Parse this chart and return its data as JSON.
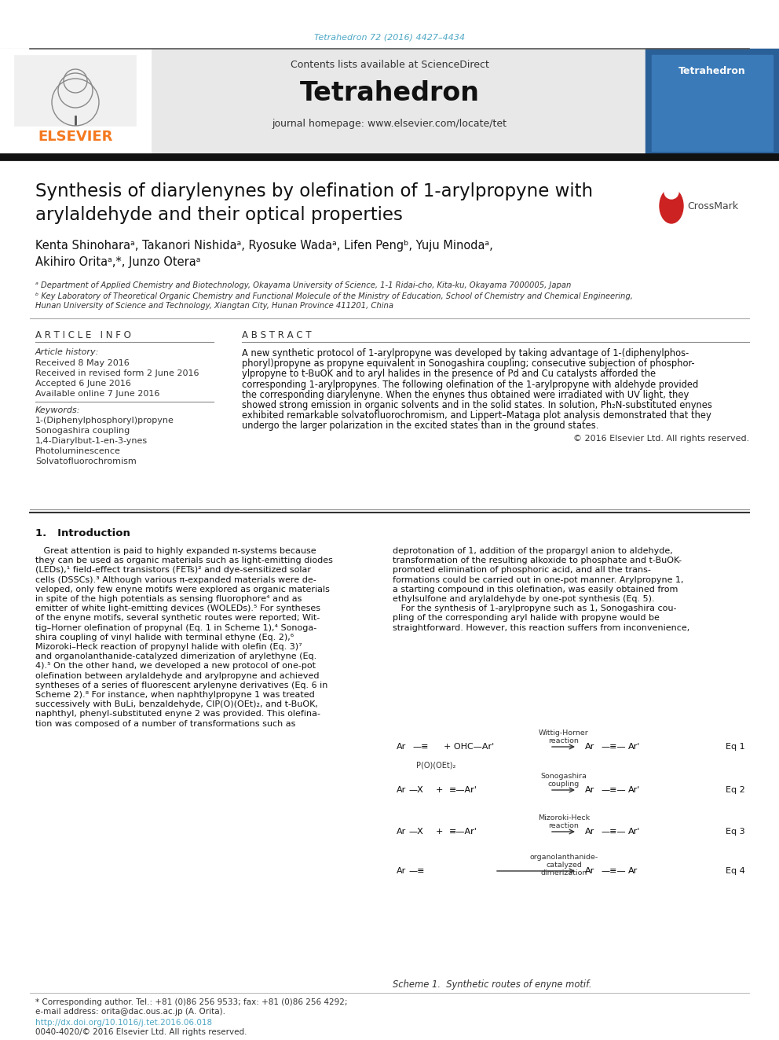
{
  "page_bg": "#ffffff",
  "header_citation": "Tetrahedron 72 (2016) 4427–4434",
  "header_citation_color": "#4fa8c5",
  "journal_name": "Tetrahedron",
  "journal_header_bg": "#e8e8e8",
  "contents_text": "Contents lists available at ",
  "sciencedirect_text": "ScienceDirect",
  "sciencedirect_color": "#4fa8c5",
  "homepage_text": "journal homepage: ",
  "homepage_url": "www.elsevier.com/locate/tet",
  "homepage_url_color": "#4fa8c5",
  "elsevier_color": "#f47920",
  "article_title": "Synthesis of diarylenynes by olefination of 1-arylpropyne with\narylaldehyde and their optical properties",
  "article_info_title": "A R T I C L E   I N F O",
  "abstract_title": "A B S T R A C T",
  "article_history_label": "Article history:",
  "received": "Received 8 May 2016",
  "revised": "Received in revised form 2 June 2016",
  "accepted": "Accepted 6 June 2016",
  "available": "Available online 7 June 2016",
  "keywords_label": "Keywords:",
  "keywords": [
    "1-(Diphenylphosphoryl)propyne",
    "Sonogashira coupling",
    "1,4-Diarylbut-1-en-3-ynes",
    "Photoluminescence",
    "Solvatofluorochromism"
  ],
  "abstract_text_lines": [
    "A new synthetic protocol of 1-arylpropyne was developed by taking advantage of 1-(diphenylphos-",
    "phoryl)propyne as propyne equivalent in Sonogashira coupling; consecutive subjection of phosphor-",
    "ylpropyne to t-BuOK and to aryl halides in the presence of Pd and Cu catalysts afforded the",
    "corresponding 1-arylpropynes. The following olefination of the 1-arylpropyne with aldehyde provided",
    "the corresponding diarylenyne. When the enynes thus obtained were irradiated with UV light, they",
    "showed strong emission in organic solvents and in the solid states. In solution, Ph₂N-substituted enynes",
    "exhibited remarkable solvatofluorochromism, and Lippert–Mataga plot analysis demonstrated that they",
    "undergo the larger polarization in the excited states than in the ground states."
  ],
  "copyright": "© 2016 Elsevier Ltd. All rights reserved.",
  "intro_heading": "1.   Introduction",
  "intro_left_lines": [
    "   Great attention is paid to highly expanded π-systems because",
    "they can be used as organic materials such as light-emitting diodes",
    "(LEDs),¹ field-effect transistors (FETs)² and dye-sensitized solar",
    "cells (DSSCs).³ Although various π-expanded materials were de-",
    "veloped, only few enyne motifs were explored as organic materials",
    "in spite of the high potentials as sensing fluorophore⁴ and as",
    "emitter of white light-emitting devices (WOLEDs).⁵ For syntheses",
    "of the enyne motifs, several synthetic routes were reported; Wit-",
    "tig–Horner olefination of propynal (Eq. 1 in Scheme 1),⁴ Sonoga-",
    "shira coupling of vinyl halide with terminal ethyne (Eq. 2),⁶",
    "Mizoroki–Heck reaction of propynyl halide with olefin (Eq. 3)⁷",
    "and organolanthanide-catalyzed dimerization of arylethyne (Eq.",
    "4).⁵ On the other hand, we developed a new protocol of one-pot",
    "olefination between arylaldehyde and arylpropyne and achieved",
    "syntheses of a series of fluorescent arylenyne derivatives (Eq. 6 in",
    "Scheme 2).⁸ For instance, when naphthylpropyne 1 was treated",
    "successively with BuLi, benzaldehyde, CIP(O)(OEt)₂, and t-BuOK,",
    "naphthyl, phenyl-substituted enyne 2 was provided. This olefina-",
    "tion was composed of a number of transformations such as"
  ],
  "intro_right_lines": [
    "deprotonation of 1, addition of the propargyl anion to aldehyde,",
    "transformation of the resulting alkoxide to phosphate and t-BuOK-",
    "promoted elimination of phosphoric acid, and all the trans-",
    "formations could be carried out in one-pot manner. Arylpropyne 1,",
    "a starting compound in this olefination, was easily obtained from",
    "ethylsulfone and arylaldehyde by one-pot synthesis (Eq. 5).",
    "   For the synthesis of 1-arylpropyne such as 1, Sonogashira cou-",
    "pling of the corresponding aryl halide with propyne would be",
    "straightforward. However, this reaction suffers from inconvenience,"
  ],
  "affil_a": "ᵃ Department of Applied Chemistry and Biotechnology, Okayama University of Science, 1-1 Ridai-cho, Kita-ku, Okayama 7000005, Japan",
  "affil_b1": "ᵇ Key Laboratory of Theoretical Organic Chemistry and Functional Molecule of the Ministry of Education, School of Chemistry and Chemical Engineering,",
  "affil_b2": "Hunan University of Science and Technology, Xiangtan City, Hunan Province 411201, China",
  "scheme_eq_labels": [
    "Eq 1",
    "Eq 2",
    "Eq 3",
    "Eq 4"
  ],
  "scheme_reaction_labels": [
    "Wittig-Horner\nreaction",
    "Sonogashira\ncoupling",
    "Mizoroki-Heck\nreaction",
    "organolanthanide-\ncatalyzed\ndimerization"
  ],
  "scheme_caption": "Scheme 1.  Synthetic routes of enyne motif.",
  "footer_note1": "* Corresponding author. Tel.: +81 (0)86 256 9533; fax: +81 (0)86 256 4292;",
  "footer_note2": "e-mail address: orita@dac.ous.ac.jp (A. Orita).",
  "doi_link": "http://dx.doi.org/10.1016/j.tet.2016.06.018",
  "doi_link_color": "#4fa8c5",
  "issn_text": "0040-4020/© 2016 Elsevier Ltd. All rights reserved."
}
